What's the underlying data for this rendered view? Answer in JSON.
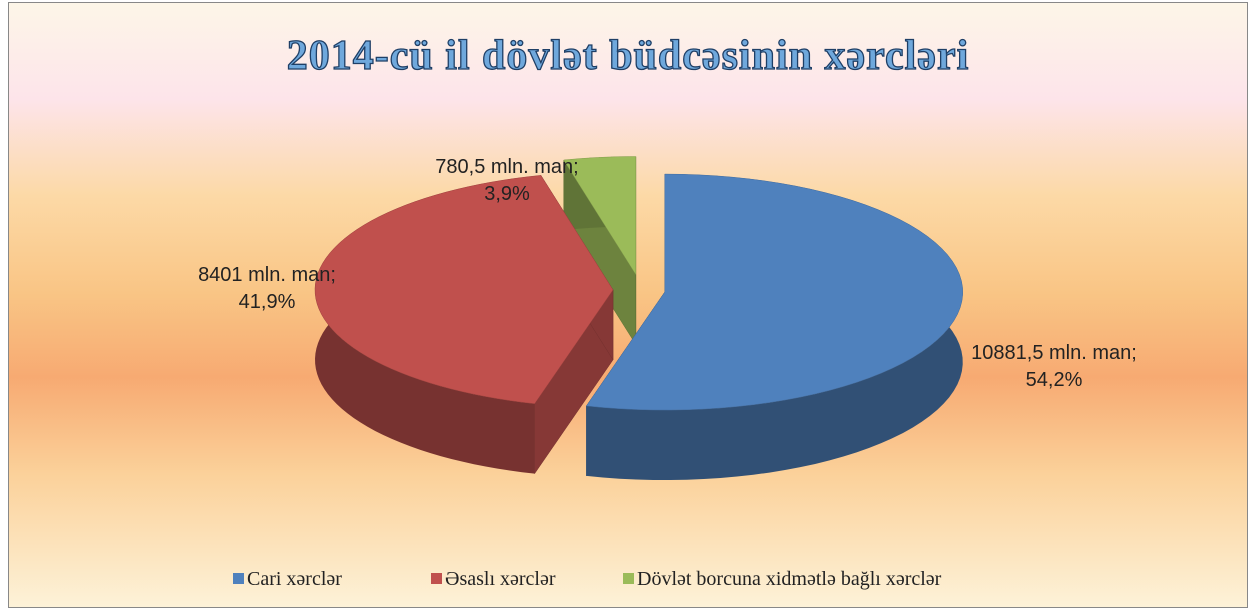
{
  "chart_data": {
    "type": "pie3d",
    "title": "2014-cü il dövlət büdcəsinin xərcləri",
    "categories": [
      "Cari xərclər",
      "Əsaslı xərclər",
      "Dövlət borcuna xidmətlə bağlı xərclər"
    ],
    "values": [
      10881.5,
      8401,
      780.5
    ],
    "value_labels": [
      [
        "10881,5 mln. man;",
        "54,2%"
      ],
      [
        "8401 mln. man;",
        "41,9%"
      ],
      [
        "780,5 mln. man;",
        "3,9%"
      ]
    ],
    "colors": [
      "#4f81bd",
      "#c0504d",
      "#9bbb59"
    ],
    "legend": "bottom"
  }
}
